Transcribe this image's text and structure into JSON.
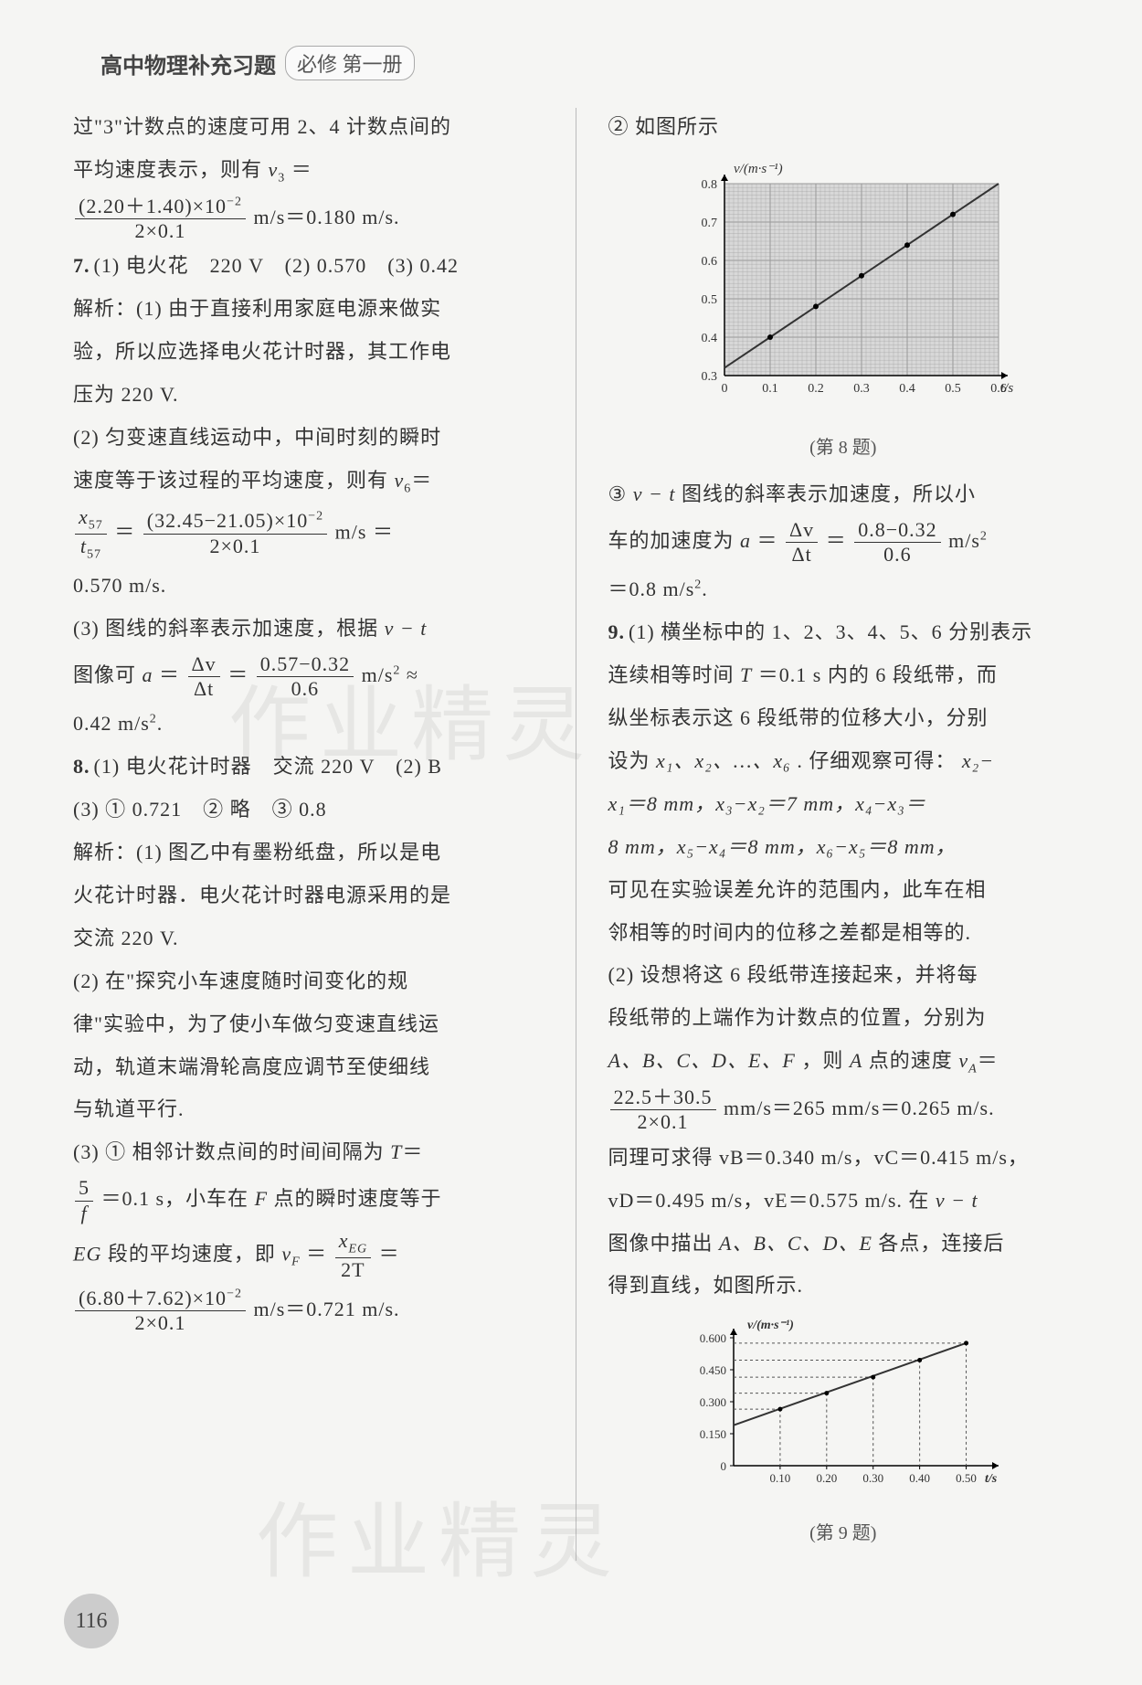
{
  "header": {
    "title": "高中物理补充习题",
    "subtitle": "必修 第一册"
  },
  "page_number": "116",
  "watermark": "作业精灵",
  "left_column": {
    "intro_line1": "过\"3\"计数点的速度可用 2、4 计数点间的",
    "intro_line2_prefix": "平均速度表示，则有 ",
    "intro_v3": "v",
    "intro_v3_sub": "3",
    "intro_eq": " ＝",
    "intro_frac_num": "(2.20＋1.40)×10",
    "intro_frac_num_sup": "−2",
    "intro_frac_den": "2×0.1",
    "intro_result": " m/s＝0.180 m/s.",
    "q7_num": "7.",
    "q7_line1": "(1) 电火花　220 V　(2) 0.570　(3) 0.42",
    "q7_analysis": "解析：(1) 由于直接利用家庭电源来做实",
    "q7_line2": "验，所以应选择电火花计时器，其工作电",
    "q7_line3": "压为 220 V.",
    "q7_part2_l1": "(2) 匀变速直线运动中，中间时刻的瞬时",
    "q7_part2_l2_prefix": "速度等于该过程的平均速度，则有 ",
    "q7_v6": "v",
    "q7_v6_sub": "6",
    "q7_v6_eq": "＝",
    "q7_frac1_num_x": "x",
    "q7_frac1_num_sub": "57",
    "q7_frac1_den_t": "t",
    "q7_frac1_den_sub": "57",
    "q7_mid_eq": " ＝ ",
    "q7_frac2_num": "(32.45−21.05)×10",
    "q7_frac2_num_sup": "−2",
    "q7_frac2_den": "2×0.1",
    "q7_unit": " m/s ＝",
    "q7_result2": "0.570 m/s.",
    "q7_part3_l1": "(3) 图线的斜率表示加速度，根据 ",
    "q7_vt": "v − t",
    "q7_part3_l2_prefix": "图像可 ",
    "q7_a": "a",
    "q7_a_eq": " ＝ ",
    "q7_frac3_num": "Δv",
    "q7_frac3_den": "Δt",
    "q7_frac4_num": "0.57−0.32",
    "q7_frac4_den": "0.6",
    "q7_unit2": " m/s",
    "q7_sup2": "2",
    "q7_approx": " ≈",
    "q7_result3": "0.42 m/s",
    "q7_result3_sup": "2",
    "q7_period": ".",
    "q8_num": "8.",
    "q8_line1": "(1) 电火花计时器　交流 220 V　(2) B",
    "q8_line2": "(3) ① 0.721　② 略　③ 0.8",
    "q8_analysis_l1": "解析：(1) 图乙中有墨粉纸盘，所以是电",
    "q8_analysis_l2": "火花计时器．电火花计时器电源采用的是",
    "q8_analysis_l3": "交流 220 V.",
    "q8_part2_l1": "(2) 在\"探究小车速度随时间变化的规",
    "q8_part2_l2": "律\"实验中，为了使小车做匀变速直线运",
    "q8_part2_l3": "动，轨道末端滑轮高度应调节至使细线",
    "q8_part2_l4": "与轨道平行.",
    "q8_part3_l1_prefix": "(3) ① 相邻计数点间的时间间隔为 ",
    "q8_T": "T",
    "q8_T_eq": "＝",
    "q8_frac5_num": "5",
    "q8_frac5_den": "f",
    "q8_part3_l2": "＝0.1 s，小车在 ",
    "q8_F": "F",
    "q8_part3_l2b": " 点的瞬时速度等于",
    "q8_EG": "EG",
    "q8_part3_l3": " 段的平均速度，即 ",
    "q8_vF": "v",
    "q8_vF_sub": "F",
    "q8_vF_eq": " ＝ ",
    "q8_frac6_num_x": "x",
    "q8_frac6_num_sub": "EG",
    "q8_frac6_den": "2T",
    "q8_l3_eq": " ＝",
    "q8_frac7_num": "(6.80＋7.62)×10",
    "q8_frac7_num_sup": "−2",
    "q8_frac7_den": "2×0.1",
    "q8_result": " m/s＝0.721 m/s."
  },
  "right_column": {
    "chart8_intro": "② 如图所示",
    "chart8_caption": "(第 8 题)",
    "chart8": {
      "type": "line",
      "ylabel": "v/(m·s⁻¹)",
      "xlabel": "t/s",
      "yticks": [
        "0.3",
        "0.4",
        "0.5",
        "0.6",
        "0.7",
        "0.8"
      ],
      "xticks": [
        "0",
        "0.1",
        "0.2",
        "0.3",
        "0.4",
        "0.5",
        "0.6"
      ],
      "ylim": [
        0.3,
        0.8
      ],
      "xlim": [
        0,
        0.6
      ],
      "line_color": "#333333",
      "bg_color": "#d8d8d8",
      "grid_color": "#999999",
      "points": [
        [
          0,
          0.32
        ],
        [
          0.1,
          0.4
        ],
        [
          0.2,
          0.48
        ],
        [
          0.3,
          0.56
        ],
        [
          0.4,
          0.64
        ],
        [
          0.5,
          0.72
        ],
        [
          0.6,
          0.8
        ]
      ],
      "marker_points": [
        [
          0.1,
          0.4
        ],
        [
          0.2,
          0.48
        ],
        [
          0.3,
          0.56
        ],
        [
          0.4,
          0.64
        ],
        [
          0.5,
          0.72
        ]
      ]
    },
    "part3_l1_prefix": "③ ",
    "part3_vt": "v − t",
    "part3_l1": " 图线的斜率表示加速度，所以小",
    "part3_l2_prefix": "车的加速度为 ",
    "part3_a": "a",
    "part3_eq1": " ＝ ",
    "part3_frac1_num": "Δv",
    "part3_frac1_den": "Δt",
    "part3_frac2_num": "0.8−0.32",
    "part3_frac2_den": "0.6",
    "part3_unit": " m/s",
    "part3_sup": "2",
    "part3_result": "＝0.8 m/s",
    "part3_result_sup": "2",
    "part3_period": ".",
    "q9_num": "9.",
    "q9_l1": "(1) 横坐标中的 1、2、3、4、5、6 分别表示",
    "q9_l2_prefix": "连续相等时间 ",
    "q9_T": "T",
    "q9_l2": "＝0.1 s 内的 6 段纸带，而",
    "q9_l3": "纵坐标表示这 6 段纸带的位移大小，分别",
    "q9_l4_prefix": "设为 ",
    "q9_x1": "x₁、x₂、…、x₆",
    "q9_l4": ". 仔细观察可得：",
    "q9_diff1": "x₂−",
    "q9_l5": "x₁＝8 mm，x₃−x₂＝7 mm，x₄−x₃＝",
    "q9_l6": "8 mm，x₅−x₄＝8 mm，x₆−x₅＝8 mm，",
    "q9_l7": "可见在实验误差允许的范围内，此车在相",
    "q9_l8": "邻相等的时间内的位移之差都是相等的.",
    "q9_part2_l1": "(2) 设想将这 6 段纸带连接起来，并将每",
    "q9_part2_l2": "段纸带的上端作为计数点的位置，分别为",
    "q9_part2_l3_prefix": "",
    "q9_ABCDEF": "A、B、C、D、E、F",
    "q9_part2_l3": "，则 ",
    "q9_A": "A",
    "q9_part2_l3b": " 点的速度 ",
    "q9_vA": "v",
    "q9_vA_sub": "A",
    "q9_vA_eq": "＝",
    "q9_frac_num": "22.5＋30.5",
    "q9_frac_den": "2×0.1",
    "q9_result1": " mm/s＝265 mm/s＝0.265 m/s.",
    "q9_l_vB": "同理可求得 vB＝0.340 m/s，vC＝0.415 m/s，",
    "q9_l_vD_prefix": "vD＝0.495 m/s，vE＝0.575 m/s. 在 ",
    "q9_vt2": "v − t",
    "q9_l_graph_prefix": "图像中描出 ",
    "q9_ABCDE": "A、B、C、D、E",
    "q9_l_graph": " 各点，连接后",
    "q9_l_final": "得到直线，如图所示.",
    "chart9_caption": "(第 9 题)",
    "chart9": {
      "type": "line",
      "ylabel": "v/(m·s⁻¹)",
      "xlabel": "t/s",
      "yticks": [
        "0",
        "0.150",
        "0.300",
        "0.450",
        "0.600"
      ],
      "xticks": [
        "0.10",
        "0.20",
        "0.30",
        "0.40",
        "0.50"
      ],
      "ylim": [
        0,
        0.6
      ],
      "xlim": [
        0,
        0.55
      ],
      "line_color": "#333333",
      "points": [
        [
          0,
          0.19
        ],
        [
          0.5,
          0.575
        ]
      ],
      "dashed_refs": [
        [
          0.1,
          0.265
        ],
        [
          0.2,
          0.34
        ],
        [
          0.3,
          0.415
        ],
        [
          0.4,
          0.495
        ],
        [
          0.5,
          0.575
        ]
      ]
    }
  }
}
